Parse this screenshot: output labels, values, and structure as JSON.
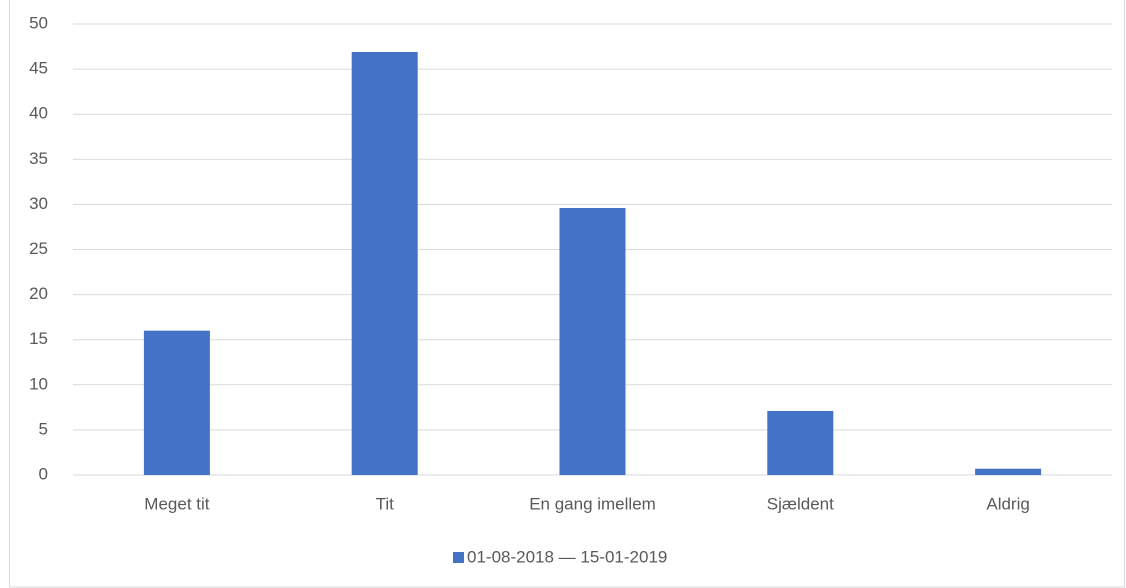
{
  "chart_data": {
    "type": "bar",
    "categories": [
      "Meget tit",
      "Tit",
      "En gang imellem",
      "Sjældent",
      "Aldrig"
    ],
    "series": [
      {
        "name": "01-08-2018 — 15-01-2019",
        "color": "#4472c4",
        "values": [
          16,
          46.9,
          29.6,
          7.1,
          0.7
        ]
      }
    ],
    "ylim": [
      0,
      50
    ],
    "yticks": [
      0,
      5,
      10,
      15,
      20,
      25,
      30,
      35,
      40,
      45,
      50
    ],
    "grid": true,
    "legend": "bottom"
  }
}
